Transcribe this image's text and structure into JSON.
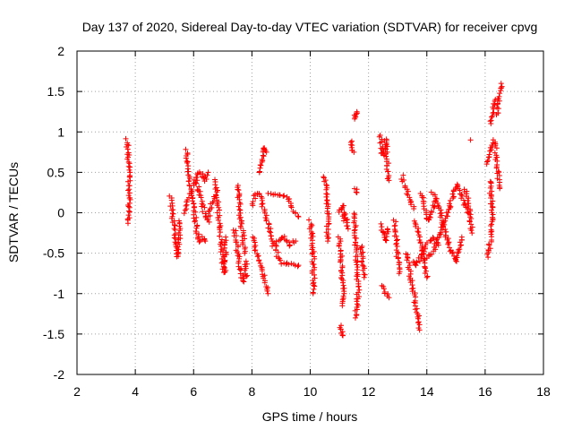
{
  "chart_data": {
    "type": "scatter",
    "title": "Day 137 of 2020, Sidereal Day-to-day VTEC variation (SDTVAR) for receiver cpvg",
    "xlabel": "GPS time / hours",
    "ylabel": "SDTVAR / TECUs",
    "xlim": [
      2,
      18
    ],
    "ylim": [
      -2,
      2
    ],
    "xticks": [
      2,
      4,
      6,
      8,
      10,
      12,
      14,
      16,
      18
    ],
    "yticks": [
      -2,
      -1.5,
      -1,
      -0.5,
      0,
      0.5,
      1,
      1.5,
      2
    ],
    "xtick_labels": [
      "2",
      "4",
      "6",
      "8",
      "10",
      "12",
      "14",
      "16",
      "18"
    ],
    "ytick_labels": [
      "-2",
      "-1.5",
      "-1",
      "-0.5",
      "0",
      "0.5",
      "1",
      "1.5",
      "2"
    ],
    "grid": true,
    "marker": "+",
    "color": "#ff0000",
    "series": [
      {
        "name": "SDTVAR",
        "tracks": [
          [
            [
              3.72,
              0.9
            ],
            [
              3.74,
              0.75
            ],
            [
              3.76,
              0.6
            ],
            [
              3.78,
              0.5
            ],
            [
              3.8,
              0.35
            ],
            [
              3.8,
              0.2
            ],
            [
              3.78,
              0.1
            ],
            [
              3.76,
              -0.05
            ],
            [
              3.75,
              -0.13
            ]
          ],
          [
            [
              5.2,
              0.2
            ],
            [
              5.25,
              0.05
            ],
            [
              5.3,
              -0.1
            ],
            [
              5.35,
              -0.3
            ],
            [
              5.4,
              -0.45
            ],
            [
              5.45,
              -0.55
            ],
            [
              5.5,
              -0.35
            ],
            [
              5.5,
              -0.1
            ]
          ],
          [
            [
              5.75,
              0.78
            ],
            [
              5.8,
              0.6
            ],
            [
              5.85,
              0.45
            ],
            [
              5.9,
              0.3
            ],
            [
              5.95,
              0.2
            ],
            [
              6.0,
              0.1
            ],
            [
              6.05,
              -0.05
            ],
            [
              6.1,
              -0.2
            ],
            [
              6.15,
              -0.3
            ],
            [
              6.2,
              -0.35
            ],
            [
              6.3,
              -0.3
            ],
            [
              6.4,
              -0.35
            ]
          ],
          [
            [
              5.7,
              0.0
            ],
            [
              5.8,
              0.15
            ],
            [
              5.9,
              0.25
            ],
            [
              6.0,
              0.35
            ],
            [
              6.1,
              0.45
            ],
            [
              6.2,
              0.5
            ],
            [
              6.3,
              0.45
            ],
            [
              6.4,
              0.4
            ],
            [
              6.5,
              0.5
            ]
          ],
          [
            [
              6.1,
              0.4
            ],
            [
              6.2,
              0.25
            ],
            [
              6.3,
              0.1
            ],
            [
              6.4,
              -0.05
            ],
            [
              6.5,
              -0.1
            ],
            [
              6.6,
              0.1
            ],
            [
              6.7,
              0.2
            ]
          ],
          [
            [
              6.75,
              0.4
            ],
            [
              6.8,
              0.2
            ],
            [
              6.85,
              0.0
            ],
            [
              6.9,
              -0.2
            ],
            [
              6.95,
              -0.4
            ],
            [
              7.0,
              -0.6
            ],
            [
              7.05,
              -0.75
            ],
            [
              7.1,
              -0.55
            ],
            [
              7.1,
              -0.3
            ]
          ],
          [
            [
              7.4,
              -0.2
            ],
            [
              7.5,
              -0.45
            ],
            [
              7.6,
              -0.7
            ],
            [
              7.7,
              -0.85
            ],
            [
              7.8,
              -0.8
            ],
            [
              7.8,
              -0.6
            ]
          ],
          [
            [
              7.5,
              0.35
            ],
            [
              7.55,
              0.15
            ],
            [
              7.6,
              -0.05
            ],
            [
              7.7,
              -0.3
            ],
            [
              7.75,
              -0.5
            ]
          ],
          [
            [
              8.0,
              0.1
            ],
            [
              8.1,
              0.2
            ],
            [
              8.2,
              0.25
            ],
            [
              8.3,
              0.2
            ],
            [
              8.4,
              0.05
            ],
            [
              8.5,
              -0.05
            ],
            [
              8.6,
              -0.2
            ],
            [
              8.7,
              -0.35
            ]
          ],
          [
            [
              8.05,
              -0.3
            ],
            [
              8.15,
              -0.5
            ],
            [
              8.25,
              -0.6
            ],
            [
              8.35,
              -0.7
            ],
            [
              8.45,
              -0.85
            ],
            [
              8.55,
              -1.0
            ]
          ],
          [
            [
              8.3,
              0.5
            ],
            [
              8.35,
              0.65
            ],
            [
              8.4,
              0.75
            ],
            [
              8.45,
              0.8
            ],
            [
              8.5,
              0.75
            ]
          ],
          [
            [
              8.6,
              0.25
            ],
            [
              8.8,
              0.22
            ],
            [
              9.0,
              0.22
            ],
            [
              9.2,
              0.2
            ],
            [
              9.4,
              0.05
            ],
            [
              9.6,
              -0.05
            ]
          ],
          [
            [
              8.7,
              -0.4
            ],
            [
              8.9,
              -0.35
            ],
            [
              9.1,
              -0.3
            ],
            [
              9.3,
              -0.4
            ],
            [
              9.5,
              -0.35
            ]
          ],
          [
            [
              8.8,
              -0.4
            ],
            [
              8.9,
              -0.55
            ],
            [
              9.0,
              -0.62
            ],
            [
              9.2,
              -0.62
            ],
            [
              9.4,
              -0.65
            ],
            [
              9.6,
              -0.65
            ]
          ],
          [
            [
              10.0,
              -0.1
            ],
            [
              10.05,
              -0.3
            ],
            [
              10.1,
              -0.5
            ],
            [
              10.1,
              -0.7
            ],
            [
              10.12,
              -0.85
            ],
            [
              10.1,
              -1.0
            ]
          ],
          [
            [
              10.5,
              0.45
            ],
            [
              10.55,
              0.2
            ],
            [
              10.6,
              0.0
            ],
            [
              10.6,
              -0.2
            ],
            [
              10.6,
              -0.35
            ]
          ],
          [
            [
              11.0,
              -0.3
            ],
            [
              11.05,
              -0.5
            ],
            [
              11.1,
              -0.8
            ],
            [
              11.15,
              -1.0
            ],
            [
              11.1,
              -1.15
            ]
          ],
          [
            [
              11.05,
              -1.38
            ],
            [
              11.1,
              -1.48
            ],
            [
              11.12,
              -1.52
            ]
          ],
          [
            [
              11.2,
              0.0
            ],
            [
              11.3,
              -0.2
            ]
          ],
          [
            [
              11.0,
              0.0
            ],
            [
              11.1,
              0.1
            ],
            [
              11.15,
              -0.1
            ]
          ],
          [
            [
              11.5,
              1.15
            ],
            [
              11.55,
              1.2
            ],
            [
              11.6,
              1.25
            ]
          ],
          [
            [
              11.4,
              0.9
            ],
            [
              11.45,
              0.8
            ],
            [
              11.5,
              0.75
            ]
          ],
          [
            [
              11.5,
              0.0
            ],
            [
              11.55,
              -0.3
            ],
            [
              11.6,
              -0.6
            ],
            [
              11.65,
              -0.9
            ],
            [
              11.6,
              -1.2
            ],
            [
              11.55,
              -1.3
            ]
          ],
          [
            [
              11.75,
              -0.4
            ],
            [
              11.8,
              -0.6
            ],
            [
              11.85,
              -0.8
            ]
          ],
          [
            [
              11.55,
              0.3
            ],
            [
              11.6,
              0.25
            ]
          ],
          [
            [
              12.4,
              0.95
            ],
            [
              12.45,
              0.8
            ],
            [
              12.5,
              0.7
            ],
            [
              12.55,
              0.8
            ],
            [
              12.6,
              0.9
            ],
            [
              12.65,
              0.6
            ],
            [
              12.7,
              0.4
            ]
          ],
          [
            [
              12.45,
              -0.15
            ],
            [
              12.5,
              -0.25
            ],
            [
              12.55,
              -0.3
            ],
            [
              12.6,
              -0.35
            ],
            [
              12.65,
              -0.2
            ]
          ],
          [
            [
              12.5,
              -0.9
            ],
            [
              12.6,
              -1.0
            ],
            [
              12.7,
              -1.05
            ]
          ],
          [
            [
              12.9,
              -0.1
            ],
            [
              12.95,
              -0.3
            ],
            [
              13.0,
              -0.55
            ],
            [
              13.05,
              -0.75
            ]
          ],
          [
            [
              13.15,
              0.45
            ],
            [
              13.25,
              0.3
            ],
            [
              13.35,
              0.25
            ],
            [
              13.45,
              0.15
            ],
            [
              13.55,
              0.05
            ]
          ],
          [
            [
              13.3,
              -0.5
            ],
            [
              13.4,
              -0.7
            ],
            [
              13.5,
              -0.9
            ],
            [
              13.6,
              -1.1
            ],
            [
              13.7,
              -1.3
            ],
            [
              13.75,
              -1.45
            ]
          ],
          [
            [
              13.5,
              -0.6
            ],
            [
              13.6,
              -0.65
            ],
            [
              13.8,
              -0.55
            ],
            [
              14.0,
              -0.4
            ],
            [
              14.2,
              -0.3
            ],
            [
              14.4,
              -0.4
            ]
          ],
          [
            [
              13.6,
              -0.1
            ],
            [
              13.7,
              -0.25
            ],
            [
              13.8,
              -0.4
            ],
            [
              13.9,
              -0.6
            ],
            [
              14.0,
              -0.8
            ]
          ],
          [
            [
              13.8,
              0.25
            ],
            [
              13.9,
              0.1
            ],
            [
              14.0,
              -0.05
            ],
            [
              14.1,
              -0.1
            ],
            [
              14.2,
              0.05
            ],
            [
              14.3,
              0.15
            ]
          ],
          [
            [
              14.0,
              -0.55
            ],
            [
              14.2,
              -0.5
            ],
            [
              14.4,
              -0.3
            ],
            [
              14.6,
              -0.1
            ],
            [
              14.8,
              0.1
            ],
            [
              15.0,
              0.35
            ],
            [
              15.2,
              0.2
            ],
            [
              15.4,
              0.0
            ]
          ],
          [
            [
              14.2,
              0.25
            ],
            [
              14.4,
              0.1
            ],
            [
              14.6,
              -0.2
            ],
            [
              14.8,
              -0.45
            ],
            [
              15.0,
              -0.6
            ],
            [
              15.2,
              -0.3
            ]
          ],
          [
            [
              15.3,
              0.3
            ],
            [
              15.4,
              0.15
            ],
            [
              15.5,
              -0.1
            ],
            [
              15.55,
              -0.25
            ]
          ],
          [
            [
              15.5,
              0.9
            ]
          ],
          [
            [
              16.15,
              0.4
            ],
            [
              16.2,
              0.2
            ],
            [
              16.25,
              0.05
            ],
            [
              16.2,
              -0.2
            ],
            [
              16.15,
              -0.45
            ],
            [
              16.1,
              -0.55
            ]
          ],
          [
            [
              16.1,
              0.6
            ],
            [
              16.2,
              0.8
            ],
            [
              16.3,
              0.9
            ],
            [
              16.4,
              0.8
            ]
          ],
          [
            [
              16.2,
              1.1
            ],
            [
              16.25,
              1.2
            ],
            [
              16.3,
              1.3
            ],
            [
              16.35,
              1.4
            ]
          ],
          [
            [
              16.4,
              1.2
            ],
            [
              16.45,
              1.35
            ],
            [
              16.5,
              1.45
            ],
            [
              16.55,
              1.6
            ]
          ],
          [
            [
              16.35,
              0.75
            ],
            [
              16.4,
              0.6
            ],
            [
              16.45,
              0.45
            ],
            [
              16.5,
              0.3
            ]
          ]
        ]
      }
    ]
  }
}
